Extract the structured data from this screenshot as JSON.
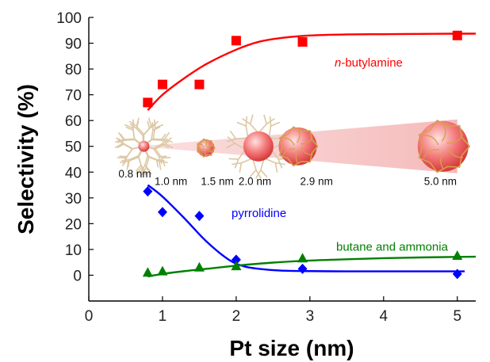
{
  "chart_data": {
    "type": "scatter",
    "xlabel": "Pt size (nm)",
    "ylabel": "Selectivity (%)",
    "xlim": [
      0,
      5.25
    ],
    "ylim": [
      -10,
      100
    ],
    "xticks": [
      0,
      1,
      2,
      3,
      4,
      5
    ],
    "yticks": [
      0,
      10,
      20,
      30,
      40,
      50,
      60,
      70,
      80,
      90,
      100
    ],
    "grid": false,
    "series": [
      {
        "name": "n-butylamine",
        "name_prefix": "n",
        "name_rest": "-butylamine",
        "color": "#ff0000",
        "marker": "square",
        "x": [
          0.8,
          1.0,
          1.5,
          2.0,
          2.9,
          5.0
        ],
        "y": [
          67,
          74,
          74,
          91,
          90.5,
          93
        ],
        "fit_x": [
          0.8,
          1.0,
          1.3,
          1.6,
          2.0,
          2.3,
          2.6,
          3.0,
          3.5,
          4.0,
          4.5,
          5.0,
          5.25
        ],
        "fit_y": [
          64,
          70,
          76.5,
          82,
          87.5,
          90.5,
          92,
          93,
          93.4,
          93.5,
          93.6,
          93.7,
          93.7
        ]
      },
      {
        "name": "pyrrolidine",
        "color": "#0000ff",
        "marker": "diamond",
        "x": [
          0.8,
          1.0,
          1.5,
          2.0,
          2.9,
          5.0
        ],
        "y": [
          32.5,
          24.5,
          23,
          6,
          2.5,
          0.5
        ],
        "fit_x": [
          0.8,
          1.0,
          1.3,
          1.6,
          1.9,
          2.1,
          2.3,
          2.6,
          3.0,
          3.5,
          4.0,
          4.5,
          5.0,
          5.1
        ],
        "fit_y": [
          35,
          30.5,
          22,
          13,
          6,
          3.5,
          2.5,
          1.8,
          1.6,
          1.5,
          1.5,
          1.5,
          1.5,
          1.5
        ]
      },
      {
        "name": "butane and ammonia",
        "color": "#008000",
        "marker": "triangle",
        "x": [
          0.8,
          1.0,
          1.5,
          2.0,
          2.9,
          5.0
        ],
        "y": [
          1,
          1.5,
          3,
          3.5,
          6.5,
          7.5
        ],
        "fit_x": [
          0.8,
          1.0,
          1.3,
          1.6,
          2.0,
          2.5,
          3.0,
          3.5,
          4.0,
          4.5,
          5.0,
          5.25
        ],
        "fit_y": [
          -0.5,
          0.5,
          1.6,
          2.5,
          3.7,
          4.9,
          5.7,
          6.2,
          6.6,
          6.9,
          7.1,
          7.2
        ]
      }
    ],
    "particle_labels": [
      {
        "text": "0.8 nm",
        "size": 0.8
      },
      {
        "text": "1.0 nm",
        "size": 1.0
      },
      {
        "text": "1.5 nm",
        "size": 1.5
      },
      {
        "text": "2.0 nm",
        "size": 2.0
      },
      {
        "text": "2.9 nm",
        "size": 2.9
      },
      {
        "text": "5.0 nm",
        "size": 5.0
      }
    ]
  }
}
